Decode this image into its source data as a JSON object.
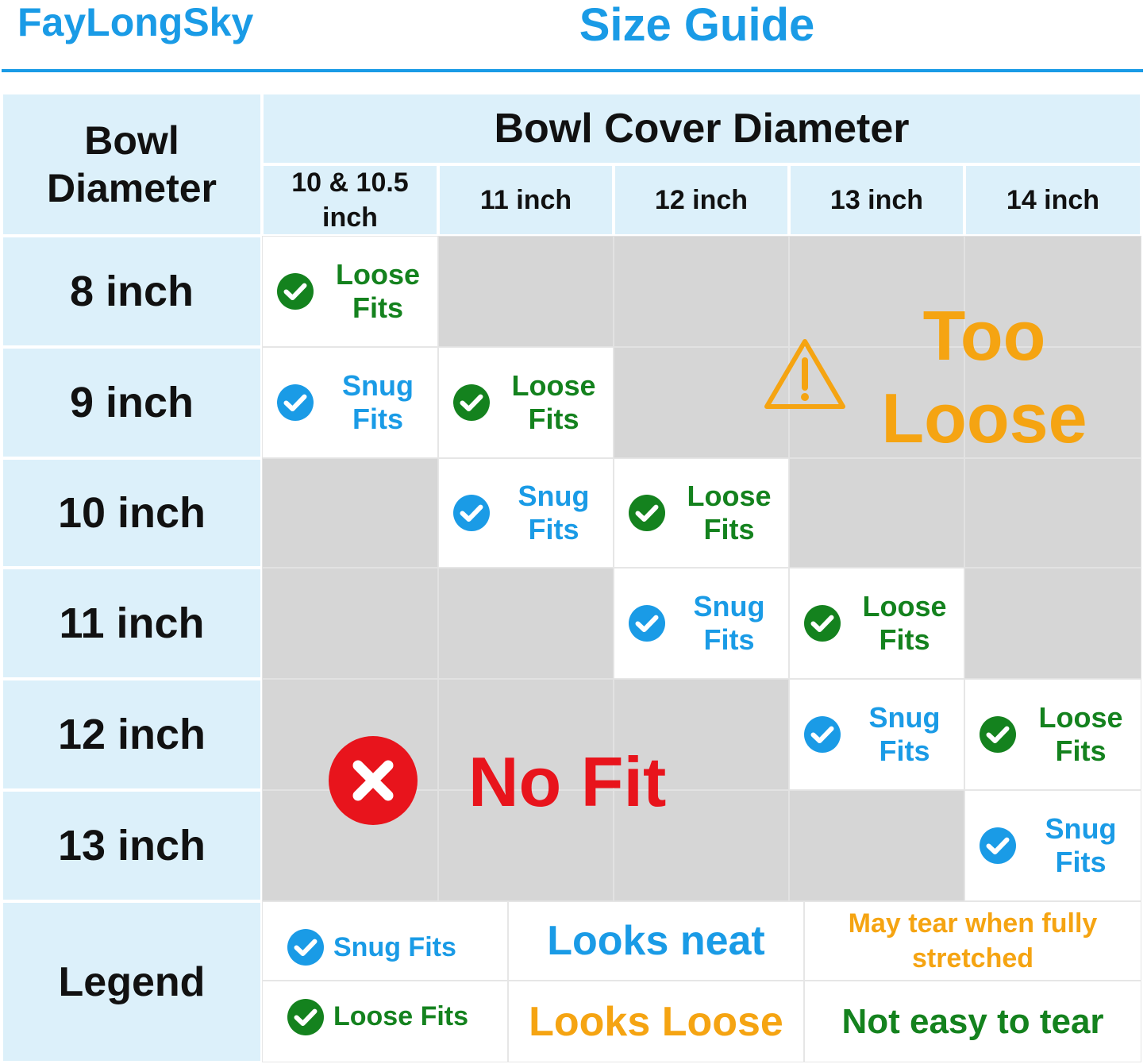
{
  "header": {
    "brand": "FayLongSky",
    "title": "Size Guide"
  },
  "table": {
    "corner": [
      "Bowl",
      "Diameter"
    ],
    "group_header": "Bowl Cover Diameter",
    "columns": [
      "10 & 10.5 inch",
      "11 inch",
      "12 inch",
      "13 inch",
      "14 inch"
    ],
    "rows": [
      "8 inch",
      "9 inch",
      "10 inch",
      "11 inch",
      "12 inch",
      "13 inch"
    ],
    "cells": [
      [
        "Loose Fits",
        null,
        null,
        null,
        null
      ],
      [
        "Snug Fits",
        "Loose Fits",
        null,
        null,
        null
      ],
      [
        null,
        "Snug Fits",
        "Loose Fits",
        null,
        null
      ],
      [
        null,
        null,
        "Snug Fits",
        "Loose Fits",
        null
      ],
      [
        null,
        null,
        null,
        "Snug Fits",
        "Loose Fits"
      ],
      [
        null,
        null,
        null,
        null,
        "Snug Fits"
      ]
    ],
    "too_loose": {
      "label": "Too Loose",
      "color": "#f5a412"
    },
    "no_fit": {
      "label": "No Fit",
      "color": "#e8141c"
    }
  },
  "legend": {
    "title": "Legend",
    "items": [
      {
        "label": "Snug Fits",
        "color": "#1a9be6",
        "look": "Looks neat",
        "look_color": "#1a9be6",
        "note": "May tear when fully stretched",
        "note_color": "#f5a412"
      },
      {
        "label": "Loose Fits",
        "color": "#14821e",
        "look": "Looks Loose",
        "look_color": "#f5a412",
        "note": "Not easy to tear",
        "note_color": "#14821e"
      }
    ]
  }
}
